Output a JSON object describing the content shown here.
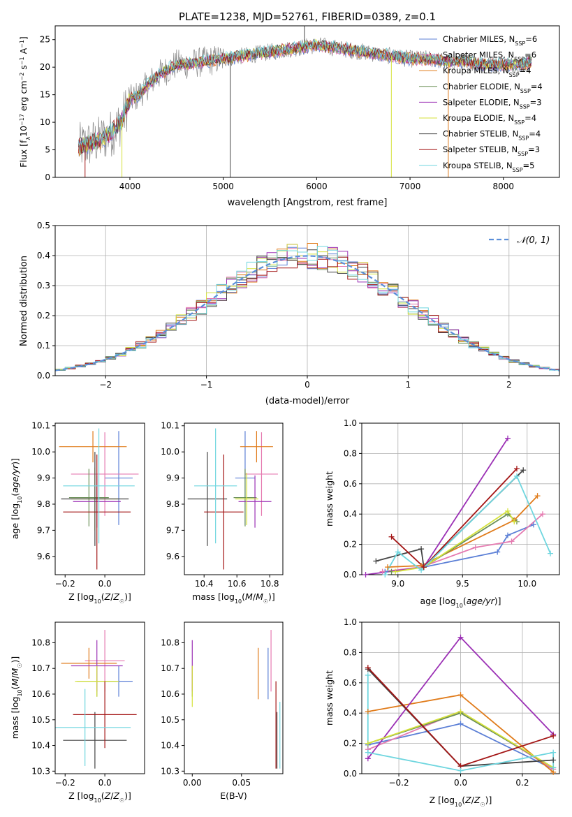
{
  "figure_title": "PLATE=1238, MJD=52761, FIBERID=0389, z=0.1",
  "colors": {
    "Chabrier MILES": "#5b7fd6",
    "Salpeter MILES": "#e57ab0",
    "Kroupa MILES": "#e07b1a",
    "Chabrier ELODIE": "#6a8f57",
    "Salpeter ELODIE": "#9b30b5",
    "Kroupa ELODIE": "#d5e23a",
    "Chabrier STELIB": "#444444",
    "Salpeter STELIB": "#a31515",
    "Kroupa STELIB": "#6fd6df",
    "normal_curve": "#5b8fd9",
    "grid": "#b0b0b0"
  },
  "chart_data": [
    {
      "id": "spectrum",
      "type": "line",
      "title": "PLATE=1238, MJD=52761, FIBERID=0389, z=0.1",
      "xlabel": "wavelength [Angstrom, rest frame]",
      "ylabel": "Flux [f_λ 10^-17 erg cm^-2 s^-1 A^-1]",
      "xlim": [
        3200,
        8600
      ],
      "ylim": [
        0,
        27.5
      ],
      "xticks": [
        4000,
        5000,
        6000,
        7000,
        8000
      ],
      "yticks": [
        0,
        5,
        10,
        15,
        20,
        25
      ],
      "grid": false,
      "legend_position": "top-right",
      "legend": [
        {
          "model": "Chabrier MILES",
          "label": "Chabrier MILES, N_SSP=6"
        },
        {
          "model": "Salpeter MILES",
          "label": "Salpeter MILES, N_SSP=6"
        },
        {
          "model": "Kroupa MILES",
          "label": "Kroupa MILES, N_SSP=4"
        },
        {
          "model": "Chabrier ELODIE",
          "label": "Chabrier ELODIE, N_SSP=4"
        },
        {
          "model": "Salpeter ELODIE",
          "label": "Salpeter ELODIE, N_SSP=3"
        },
        {
          "model": "Kroupa ELODIE",
          "label": "Kroupa ELODIE, N_SSP=4"
        },
        {
          "model": "Chabrier STELIB",
          "label": "Chabrier STELIB, N_SSP=4"
        },
        {
          "model": "Salpeter STELIB",
          "label": "Salpeter STELIB, N_SSP=3"
        },
        {
          "model": "Kroupa STELIB",
          "label": "Kroupa STELIB, N_SSP=5"
        }
      ],
      "continuum": {
        "x": [
          3450,
          3600,
          3700,
          3800,
          3900,
          4000,
          4100,
          4200,
          4300,
          4400,
          4500,
          4600,
          4800,
          5000,
          5200,
          5400,
          5600,
          5800,
          6000,
          6200,
          6400,
          6600,
          6800,
          7000,
          7200,
          7400,
          7600,
          7800,
          8000,
          8200,
          8300
        ],
        "y": [
          5.5,
          6.2,
          7.0,
          8.0,
          10.0,
          14.0,
          15.0,
          17.0,
          18.5,
          19.5,
          20.5,
          20.5,
          21.0,
          21.5,
          22.0,
          22.5,
          23.0,
          23.5,
          24.0,
          23.5,
          23.0,
          22.5,
          22.0,
          21.5,
          21.5,
          21.0,
          21.0,
          20.5,
          20.5,
          20.5,
          21.0
        ]
      },
      "spikes": [
        {
          "x": 3520,
          "to": 0,
          "series": "Salpeter STELIB"
        },
        {
          "x": 3915,
          "to": 0,
          "series": "Kroupa ELODIE"
        },
        {
          "x": 5075,
          "to": 0,
          "series": "Chabrier STELIB"
        },
        {
          "x": 5870,
          "to": 30,
          "series": "Chabrier STELIB"
        },
        {
          "x": 6800,
          "to": 0,
          "series": "Kroupa ELODIE"
        },
        {
          "x": 7410,
          "to": 0,
          "series": "Kroupa MILES"
        }
      ]
    },
    {
      "id": "residual-histogram",
      "type": "histogram",
      "xlabel": "(data-model)/error",
      "ylabel": "Normed distribution",
      "xlim": [
        -2.5,
        2.5
      ],
      "ylim": [
        0,
        0.5
      ],
      "xticks": [
        -2,
        -1,
        0,
        1,
        2
      ],
      "yticks": [
        0.0,
        0.1,
        0.2,
        0.3,
        0.4,
        0.5
      ],
      "grid": true,
      "legend_position": "top-right",
      "legend": [
        {
          "label": "𝒩(0, 1)",
          "style": "dashed"
        }
      ],
      "bin_width": 0.1
    },
    {
      "id": "age-vs-Z",
      "type": "scatter",
      "xlabel": "Z [log10(Z/Z☉)]",
      "ylabel": "age [log10(age/yr)]",
      "xlim": [
        -0.25,
        0.2
      ],
      "ylim": [
        9.53,
        10.11
      ],
      "xticks": [
        -0.2,
        0.0
      ],
      "yticks": [
        9.6,
        9.7,
        9.8,
        9.9,
        10.0,
        10.1
      ],
      "points": [
        {
          "series": "Chabrier MILES",
          "x": 0.07,
          "xerr": 0.07,
          "y": 9.9,
          "yerr": 0.18
        },
        {
          "series": "Salpeter MILES",
          "x": 0.0,
          "xerr": 0.17,
          "y": 9.915,
          "yerr": 0.16
        },
        {
          "series": "Kroupa MILES",
          "x": -0.06,
          "xerr": 0.17,
          "y": 10.02,
          "yerr": 0.06
        },
        {
          "series": "Chabrier ELODIE",
          "x": -0.08,
          "xerr": 0.1,
          "y": 9.825,
          "yerr": 0.11
        },
        {
          "series": "Salpeter ELODIE",
          "x": -0.04,
          "xerr": 0.12,
          "y": 9.81,
          "yerr": 0.1
        },
        {
          "series": "Kroupa ELODIE",
          "x": -0.05,
          "xerr": 0.12,
          "y": 9.82,
          "yerr": 0.12
        },
        {
          "series": "Chabrier STELIB",
          "x": -0.05,
          "xerr": 0.17,
          "y": 9.82,
          "yerr": 0.18
        },
        {
          "series": "Salpeter STELIB",
          "x": -0.04,
          "xerr": 0.17,
          "y": 9.77,
          "yerr": 0.22
        },
        {
          "series": "Kroupa STELIB",
          "x": -0.03,
          "xerr": 0.18,
          "y": 9.87,
          "yerr": 0.22
        }
      ]
    },
    {
      "id": "age-vs-mass",
      "type": "scatter",
      "xlabel": "mass [log10(M/M☉)]",
      "ylabel": "",
      "xlim": [
        10.28,
        10.88
      ],
      "ylim": [
        9.53,
        10.11
      ],
      "xticks": [
        10.4,
        10.6,
        10.8
      ],
      "yticks": [
        9.6,
        9.7,
        9.8,
        9.9,
        10.0,
        10.1
      ],
      "points": [
        {
          "series": "Chabrier MILES",
          "x": 10.65,
          "xerr": 0.06,
          "y": 9.9,
          "yerr": 0.18
        },
        {
          "series": "Salpeter MILES",
          "x": 10.75,
          "xerr": 0.1,
          "y": 9.915,
          "yerr": 0.16
        },
        {
          "series": "Kroupa MILES",
          "x": 10.72,
          "xerr": 0.1,
          "y": 10.02,
          "yerr": 0.06
        },
        {
          "series": "Chabrier ELODIE",
          "x": 10.65,
          "xerr": 0.07,
          "y": 9.825,
          "yerr": 0.11
        },
        {
          "series": "Salpeter ELODIE",
          "x": 10.71,
          "xerr": 0.1,
          "y": 9.81,
          "yerr": 0.1
        },
        {
          "series": "Kroupa ELODIE",
          "x": 10.66,
          "xerr": 0.07,
          "y": 9.82,
          "yerr": 0.1
        },
        {
          "series": "Chabrier STELIB",
          "x": 10.42,
          "xerr": 0.12,
          "y": 9.82,
          "yerr": 0.18
        },
        {
          "series": "Salpeter STELIB",
          "x": 10.52,
          "xerr": 0.12,
          "y": 9.77,
          "yerr": 0.22
        },
        {
          "series": "Kroupa STELIB",
          "x": 10.47,
          "xerr": 0.13,
          "y": 9.87,
          "yerr": 0.22
        }
      ]
    },
    {
      "id": "massweight-vs-age",
      "type": "line",
      "xlabel": "age [log10(age/yr)]",
      "ylabel": "mass weight",
      "xlim": [
        8.72,
        10.25
      ],
      "ylim": [
        0,
        1.0
      ],
      "xticks": [
        9.0,
        9.5,
        10.0
      ],
      "yticks": [
        0.0,
        0.2,
        0.4,
        0.6,
        0.8,
        1.0
      ],
      "grid": true,
      "series": [
        {
          "name": "Chabrier MILES",
          "x": [
            8.9,
            9.2,
            9.77,
            9.85,
            10.05
          ],
          "y": [
            0.02,
            0.05,
            0.15,
            0.26,
            0.33
          ]
        },
        {
          "name": "Salpeter MILES",
          "x": [
            8.88,
            9.18,
            9.6,
            9.88,
            10.12
          ],
          "y": [
            0.02,
            0.05,
            0.18,
            0.22,
            0.4
          ]
        },
        {
          "name": "Kroupa MILES",
          "x": [
            8.92,
            9.18,
            9.9,
            10.08
          ],
          "y": [
            0.05,
            0.06,
            0.36,
            0.52
          ]
        },
        {
          "name": "Chabrier ELODIE",
          "x": [
            8.95,
            9.2,
            9.85,
            9.92
          ],
          "y": [
            0.02,
            0.05,
            0.4,
            0.35
          ]
        },
        {
          "name": "Salpeter ELODIE",
          "x": [
            8.75,
            9.2,
            9.85
          ],
          "y": [
            0.0,
            0.05,
            0.9
          ]
        },
        {
          "name": "Kroupa ELODIE",
          "x": [
            8.98,
            9.2,
            9.85,
            9.9
          ],
          "y": [
            0.02,
            0.05,
            0.42,
            0.35
          ]
        },
        {
          "name": "Chabrier STELIB",
          "x": [
            8.83,
            9.18,
            9.2,
            9.97
          ],
          "y": [
            0.09,
            0.17,
            0.05,
            0.69
          ]
        },
        {
          "name": "Salpeter STELIB",
          "x": [
            8.95,
            9.2,
            9.92
          ],
          "y": [
            0.25,
            0.05,
            0.7
          ]
        },
        {
          "name": "Kroupa STELIB",
          "x": [
            8.9,
            9.0,
            9.18,
            9.92,
            10.18
          ],
          "y": [
            0.0,
            0.15,
            0.03,
            0.65,
            0.14
          ]
        }
      ]
    },
    {
      "id": "mass-vs-Z",
      "type": "scatter",
      "xlabel": "Z [log10(Z/Z☉)]",
      "ylabel": "mass [log10(M/M☉)]",
      "xlim": [
        -0.25,
        0.2
      ],
      "ylim": [
        10.29,
        10.88
      ],
      "xticks": [
        -0.2,
        0.0
      ],
      "yticks": [
        10.3,
        10.4,
        10.5,
        10.6,
        10.7,
        10.8
      ],
      "points": [
        {
          "series": "Chabrier MILES",
          "x": 0.07,
          "xerr": 0.07,
          "y": 10.65,
          "yerr": 0.06
        },
        {
          "series": "Salpeter MILES",
          "x": 0.0,
          "xerr": 0.1,
          "y": 10.73,
          "yerr": 0.12
        },
        {
          "series": "Kroupa MILES",
          "x": -0.08,
          "xerr": 0.14,
          "y": 10.72,
          "yerr": 0.06
        },
        {
          "series": "Chabrier ELODIE",
          "x": -0.04,
          "xerr": 0.1,
          "y": 10.65,
          "yerr": 0.06
        },
        {
          "series": "Salpeter ELODIE",
          "x": -0.04,
          "xerr": 0.13,
          "y": 10.71,
          "yerr": 0.1
        },
        {
          "series": "Kroupa ELODIE",
          "x": -0.04,
          "xerr": 0.11,
          "y": 10.65,
          "yerr": 0.06
        },
        {
          "series": "Chabrier STELIB",
          "x": -0.05,
          "xerr": 0.16,
          "y": 10.42,
          "yerr": 0.11
        },
        {
          "series": "Salpeter STELIB",
          "x": 0.0,
          "xerr": 0.16,
          "y": 10.52,
          "yerr": 0.13
        },
        {
          "series": "Kroupa STELIB",
          "x": -0.1,
          "xerr": 0.23,
          "y": 10.47,
          "yerr": 0.15
        }
      ]
    },
    {
      "id": "mass-vs-EBV",
      "type": "scatter",
      "xlabel": "E(B-V)",
      "ylabel": "",
      "xlim": [
        -0.008,
        0.092
      ],
      "ylim": [
        10.29,
        10.88
      ],
      "xticks": [
        0.0,
        0.05
      ],
      "yticks": [
        10.3,
        10.4,
        10.5,
        10.6,
        10.7,
        10.8
      ],
      "points": [
        {
          "series": "Chabrier MILES",
          "x": 0.077,
          "xerr": 0,
          "y": 10.68,
          "yerr": 0.1
        },
        {
          "series": "Salpeter MILES",
          "x": 0.08,
          "xerr": 0,
          "y": 10.73,
          "yerr": 0.12
        },
        {
          "series": "Kroupa MILES",
          "x": 0.067,
          "xerr": 0,
          "y": 10.68,
          "yerr": 0.1
        },
        {
          "series": "Chabrier ELODIE",
          "x": 0.0,
          "xerr": 0,
          "y": 10.65,
          "yerr": 0.06
        },
        {
          "series": "Salpeter ELODIE",
          "x": 0.0,
          "xerr": 0,
          "y": 10.71,
          "yerr": 0.1
        },
        {
          "series": "Kroupa ELODIE",
          "x": 0.0,
          "xerr": 0,
          "y": 10.63,
          "yerr": 0.08
        },
        {
          "series": "Chabrier STELIB",
          "x": 0.086,
          "xerr": 0,
          "y": 10.42,
          "yerr": 0.11
        },
        {
          "series": "Salpeter STELIB",
          "x": 0.085,
          "xerr": 0,
          "y": 10.48,
          "yerr": 0.17
        },
        {
          "series": "Kroupa STELIB",
          "x": 0.089,
          "xerr": 0,
          "y": 10.44,
          "yerr": 0.13
        }
      ]
    },
    {
      "id": "massweight-vs-Z",
      "type": "line",
      "xlabel": "Z [log10(Z/Z☉)]",
      "ylabel": "mass weight",
      "xlim": [
        -0.32,
        0.32
      ],
      "ylim": [
        0,
        1.0
      ],
      "xticks": [
        -0.2,
        0.0,
        0.2
      ],
      "yticks": [
        0.0,
        0.2,
        0.4,
        0.6,
        0.8,
        1.0
      ],
      "grid": true,
      "series": [
        {
          "name": "Chabrier MILES",
          "x": [
            -0.3,
            0.0,
            0.3
          ],
          "y": [
            0.19,
            0.33,
            0.03
          ]
        },
        {
          "name": "Salpeter MILES",
          "x": [
            -0.3,
            0.0,
            0.3
          ],
          "y": [
            0.16,
            0.41,
            0.03
          ]
        },
        {
          "name": "Kroupa MILES",
          "x": [
            -0.3,
            0.0,
            0.3
          ],
          "y": [
            0.41,
            0.52,
            0.01
          ]
        },
        {
          "name": "Chabrier ELODIE",
          "x": [
            -0.3,
            0.0,
            0.3
          ],
          "y": [
            0.2,
            0.4,
            0.04
          ]
        },
        {
          "name": "Salpeter ELODIE",
          "x": [
            -0.3,
            0.0,
            0.3
          ],
          "y": [
            0.1,
            0.9,
            0.26
          ]
        },
        {
          "name": "Kroupa ELODIE",
          "x": [
            -0.3,
            0.0,
            0.3
          ],
          "y": [
            0.2,
            0.41,
            0.04
          ]
        },
        {
          "name": "Chabrier STELIB",
          "x": [
            -0.3,
            0.0,
            0.3
          ],
          "y": [
            0.69,
            0.05,
            0.09
          ]
        },
        {
          "name": "Salpeter STELIB",
          "x": [
            -0.3,
            0.0,
            0.3
          ],
          "y": [
            0.7,
            0.05,
            0.25
          ]
        },
        {
          "name": "Kroupa STELIB",
          "x": [
            -0.3,
            -0.3,
            0.0,
            0.3,
            0.3
          ],
          "y": [
            0.65,
            0.14,
            0.02,
            0.14,
            0.04
          ]
        }
      ]
    }
  ]
}
